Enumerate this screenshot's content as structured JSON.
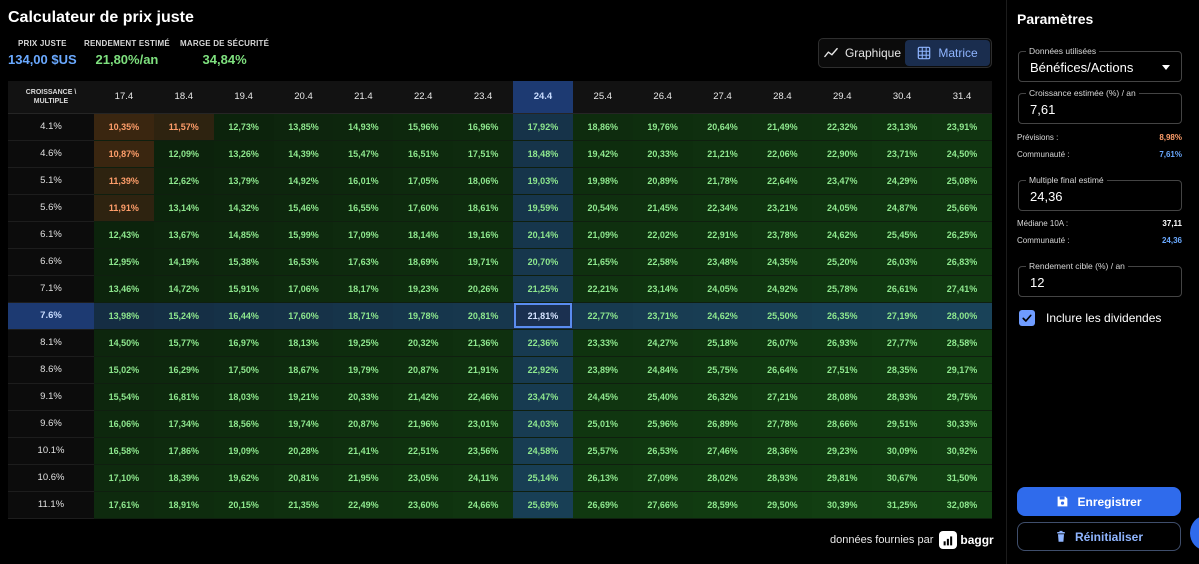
{
  "title": "Calculateur de prix juste",
  "stats": [
    {
      "label": "PRIX JUSTE",
      "value": "134,00 $US"
    },
    {
      "label": "RENDEMENT ESTIMÉ",
      "value": "21,80%/an"
    },
    {
      "label": "MARGE DE SÉCURITÉ",
      "value": "34,84%"
    }
  ],
  "view_toggle": {
    "chart_label": "Graphique",
    "matrix_label": "Matrice",
    "active": "Matrice"
  },
  "matrix": {
    "corner_line1": "CROISSANCE \\",
    "corner_line2": "MULTIPLE",
    "columns": [
      "17.4",
      "18.4",
      "19.4",
      "20.4",
      "21.4",
      "22.4",
      "23.4",
      "24.4",
      "25.4",
      "26.4",
      "27.4",
      "28.4",
      "29.4",
      "30.4",
      "31.4"
    ],
    "highlight_column": "24.4",
    "highlight_row": "7.6%",
    "selected_value": "21,81%",
    "rows": [
      {
        "label": "4.1%",
        "values": [
          "10,35%",
          "11,57%",
          "12,73%",
          "13,85%",
          "14,93%",
          "15,96%",
          "16,96%",
          "17,92%",
          "18,86%",
          "19,76%",
          "20,64%",
          "21,49%",
          "22,32%",
          "23,13%",
          "23,91%"
        ]
      },
      {
        "label": "4.6%",
        "values": [
          "10,87%",
          "12,09%",
          "13,26%",
          "14,39%",
          "15,47%",
          "16,51%",
          "17,51%",
          "18,48%",
          "19,42%",
          "20,33%",
          "21,21%",
          "22,06%",
          "22,90%",
          "23,71%",
          "24,50%"
        ]
      },
      {
        "label": "5.1%",
        "values": [
          "11,39%",
          "12,62%",
          "13,79%",
          "14,92%",
          "16,01%",
          "17,05%",
          "18,06%",
          "19,03%",
          "19,98%",
          "20,89%",
          "21,78%",
          "22,64%",
          "23,47%",
          "24,29%",
          "25,08%"
        ]
      },
      {
        "label": "5.6%",
        "values": [
          "11,91%",
          "13,14%",
          "14,32%",
          "15,46%",
          "16,55%",
          "17,60%",
          "18,61%",
          "19,59%",
          "20,54%",
          "21,45%",
          "22,34%",
          "23,21%",
          "24,05%",
          "24,87%",
          "25,66%"
        ]
      },
      {
        "label": "6.1%",
        "values": [
          "12,43%",
          "13,67%",
          "14,85%",
          "15,99%",
          "17,09%",
          "18,14%",
          "19,16%",
          "20,14%",
          "21,09%",
          "22,02%",
          "22,91%",
          "23,78%",
          "24,62%",
          "25,45%",
          "26,25%"
        ]
      },
      {
        "label": "6.6%",
        "values": [
          "12,95%",
          "14,19%",
          "15,38%",
          "16,53%",
          "17,63%",
          "18,69%",
          "19,71%",
          "20,70%",
          "21,65%",
          "22,58%",
          "23,48%",
          "24,35%",
          "25,20%",
          "26,03%",
          "26,83%"
        ]
      },
      {
        "label": "7.1%",
        "values": [
          "13,46%",
          "14,72%",
          "15,91%",
          "17,06%",
          "18,17%",
          "19,23%",
          "20,26%",
          "21,25%",
          "22,21%",
          "23,14%",
          "24,05%",
          "24,92%",
          "25,78%",
          "26,61%",
          "27,41%"
        ]
      },
      {
        "label": "7.6%",
        "values": [
          "13,98%",
          "15,24%",
          "16,44%",
          "17,60%",
          "18,71%",
          "19,78%",
          "20,81%",
          "21,81%",
          "22,77%",
          "23,71%",
          "24,62%",
          "25,50%",
          "26,35%",
          "27,19%",
          "28,00%"
        ]
      },
      {
        "label": "8.1%",
        "values": [
          "14,50%",
          "15,77%",
          "16,97%",
          "18,13%",
          "19,25%",
          "20,32%",
          "21,36%",
          "22,36%",
          "23,33%",
          "24,27%",
          "25,18%",
          "26,07%",
          "26,93%",
          "27,77%",
          "28,58%"
        ]
      },
      {
        "label": "8.6%",
        "values": [
          "15,02%",
          "16,29%",
          "17,50%",
          "18,67%",
          "19,79%",
          "20,87%",
          "21,91%",
          "22,92%",
          "23,89%",
          "24,84%",
          "25,75%",
          "26,64%",
          "27,51%",
          "28,35%",
          "29,17%"
        ]
      },
      {
        "label": "9.1%",
        "values": [
          "15,54%",
          "16,81%",
          "18,03%",
          "19,21%",
          "20,33%",
          "21,42%",
          "22,46%",
          "23,47%",
          "24,45%",
          "25,40%",
          "26,32%",
          "27,21%",
          "28,08%",
          "28,93%",
          "29,75%"
        ]
      },
      {
        "label": "9.6%",
        "values": [
          "16,06%",
          "17,34%",
          "18,56%",
          "19,74%",
          "20,87%",
          "21,96%",
          "23,01%",
          "24,03%",
          "25,01%",
          "25,96%",
          "26,89%",
          "27,78%",
          "28,66%",
          "29,51%",
          "30,33%"
        ]
      },
      {
        "label": "10.1%",
        "values": [
          "16,58%",
          "17,86%",
          "19,09%",
          "20,28%",
          "21,41%",
          "22,51%",
          "23,56%",
          "24,58%",
          "25,57%",
          "26,53%",
          "27,46%",
          "28,36%",
          "29,23%",
          "30,09%",
          "30,92%"
        ]
      },
      {
        "label": "10.6%",
        "values": [
          "17,10%",
          "18,39%",
          "19,62%",
          "20,81%",
          "21,95%",
          "23,05%",
          "24,11%",
          "25,14%",
          "26,13%",
          "27,09%",
          "28,02%",
          "28,93%",
          "29,81%",
          "30,67%",
          "31,50%"
        ]
      },
      {
        "label": "11.1%",
        "values": [
          "17,61%",
          "18,91%",
          "20,15%",
          "21,35%",
          "22,49%",
          "23,60%",
          "24,66%",
          "25,69%",
          "26,69%",
          "27,66%",
          "28,59%",
          "29,50%",
          "30,39%",
          "31,25%",
          "32,08%"
        ]
      }
    ]
  },
  "footer": {
    "text": "données fournies par",
    "brand": "baggr"
  },
  "panel": {
    "title": "Paramètres",
    "data_used": {
      "label": "Données utilisées",
      "value": "Bénéfices/Actions"
    },
    "growth": {
      "label": "Croissance estimée (%) / an",
      "value": "7,61"
    },
    "forecasts": {
      "label": "Prévisions :",
      "value": "8,98%"
    },
    "community1": {
      "label": "Communauté :",
      "value": "7,61%"
    },
    "final_multiple": {
      "label": "Multiple final estimé",
      "value": "24,36"
    },
    "median": {
      "label": "Médiane 10A :",
      "value": "37,11"
    },
    "community2": {
      "label": "Communauté :",
      "value": "24,36"
    },
    "target_return": {
      "label": "Rendement cible (%) / an",
      "value": "12"
    },
    "dividends": {
      "label": "Inclure les dividendes",
      "checked": true
    },
    "save_label": "Enregistrer",
    "reset_label": "Réinitialiser"
  },
  "colors": {
    "accent": "#2f6bec",
    "positive": "#8ee88e",
    "warning": "#ff9e6a",
    "highlight": "#1d3a72"
  }
}
